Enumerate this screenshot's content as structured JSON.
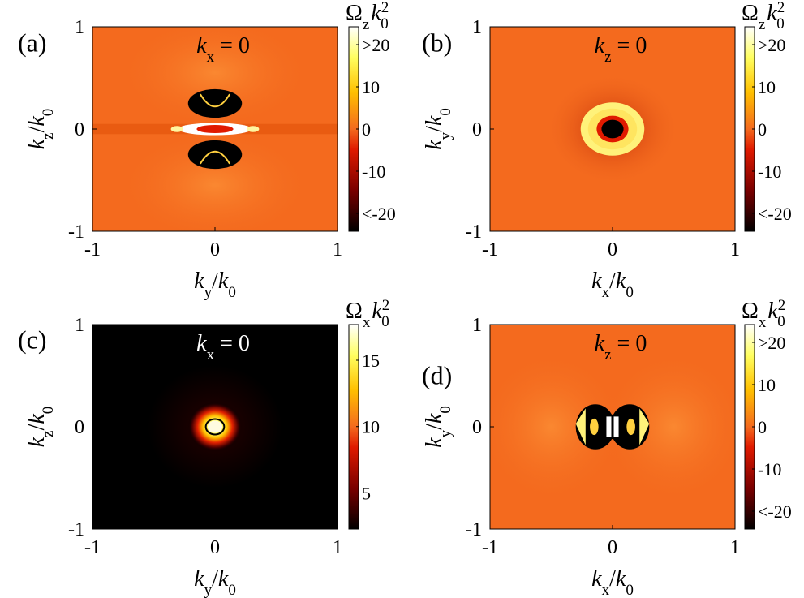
{
  "chart_data": [
    {
      "panel_label": "(a)",
      "type": "heatmap",
      "annotation": {
        "var": "k",
        "sub": "x",
        "rest": " = 0"
      },
      "x_axis": {
        "var": "k",
        "sub": "y",
        "den": "k",
        "den_sub": "0"
      },
      "y_axis": {
        "var": "k",
        "sub": "z",
        "den": "k",
        "den_sub": "0"
      },
      "x_ticks": [
        "-1",
        "0",
        "1"
      ],
      "y_ticks": [
        "1",
        "0",
        "-1"
      ],
      "xlim": [
        -1,
        1
      ],
      "ylim": [
        -1,
        1
      ],
      "colorbar": {
        "label": {
          "sym": "Ω",
          "sub": "z",
          "var": "k",
          "var_sub": "0",
          "sup": "2"
        },
        "ticks": [
          ">20",
          "10",
          "0",
          "-10",
          "<-20"
        ],
        "range": [
          -25,
          25
        ]
      },
      "pattern": "dipole-z"
    },
    {
      "panel_label": "(b)",
      "type": "heatmap",
      "annotation": {
        "var": "k",
        "sub": "z",
        "rest": " = 0"
      },
      "x_axis": {
        "var": "k",
        "sub": "x",
        "den": "k",
        "den_sub": "0"
      },
      "y_axis": {
        "var": "k",
        "sub": "y",
        "den": "k",
        "den_sub": "0"
      },
      "x_ticks": [
        "-1",
        "0",
        "1"
      ],
      "y_ticks": [
        "1",
        "0",
        "-1"
      ],
      "xlim": [
        -1,
        1
      ],
      "ylim": [
        -1,
        1
      ],
      "colorbar": {
        "label": {
          "sym": "Ω",
          "sub": "z",
          "var": "k",
          "var_sub": "0",
          "sup": "2"
        },
        "ticks": [
          ">20",
          "10",
          "0",
          "-10",
          "<-20"
        ],
        "range": [
          -25,
          25
        ]
      },
      "pattern": "ring"
    },
    {
      "panel_label": "(c)",
      "type": "heatmap",
      "annotation": {
        "var": "k",
        "sub": "x",
        "rest": " = 0"
      },
      "x_axis": {
        "var": "k",
        "sub": "y",
        "den": "k",
        "den_sub": "0"
      },
      "y_axis": {
        "var": "k",
        "sub": "z",
        "den": "k",
        "den_sub": "0"
      },
      "x_ticks": [
        "-1",
        "0",
        "1"
      ],
      "y_ticks": [
        "1",
        "0",
        "-1"
      ],
      "xlim": [
        -1,
        1
      ],
      "ylim": [
        -1,
        1
      ],
      "colorbar": {
        "label": {
          "sym": "Ω",
          "sub": "x",
          "var": "k",
          "var_sub": "0",
          "sup": "2"
        },
        "ticks": [
          "15",
          "10",
          "5"
        ],
        "range": [
          0,
          18
        ]
      },
      "pattern": "peak"
    },
    {
      "panel_label": "(d)",
      "type": "heatmap",
      "annotation": {
        "var": "k",
        "sub": "z",
        "rest": " = 0"
      },
      "x_axis": {
        "var": "k",
        "sub": "x",
        "den": "k",
        "den_sub": "0"
      },
      "y_axis": {
        "var": "k",
        "sub": "y",
        "den": "k",
        "den_sub": "0"
      },
      "x_ticks": [
        "-1",
        "0",
        "1"
      ],
      "y_ticks": [
        "1",
        "0",
        "-1"
      ],
      "xlim": [
        -1,
        1
      ],
      "ylim": [
        -1,
        1
      ],
      "colorbar": {
        "label": {
          "sym": "Ω",
          "sub": "x",
          "var": "k",
          "var_sub": "0",
          "sup": "2"
        },
        "ticks": [
          ">20",
          "10",
          "0",
          "-10",
          "<-20"
        ],
        "range": [
          -25,
          25
        ]
      },
      "pattern": "dipole-x"
    }
  ],
  "colors": {
    "hot_stops": [
      "#000000",
      "#7a0000",
      "#e01a00",
      "#ff6a00",
      "#ffc000",
      "#ffff60",
      "#ffffff"
    ],
    "background_orange": "#f46a1e",
    "axis": "#000000",
    "annotation_light": "#ffffff"
  }
}
